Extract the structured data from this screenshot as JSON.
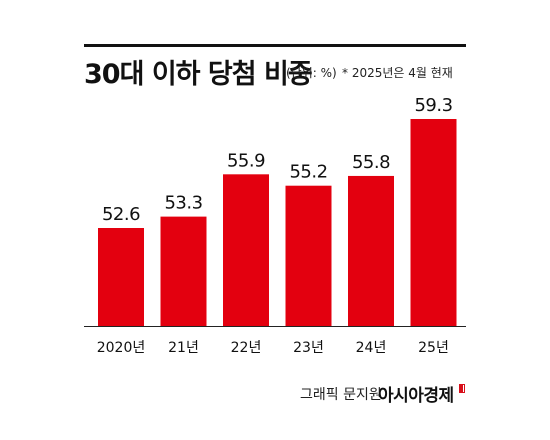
{
  "header": {
    "title": "30대 이하 당첨 비중",
    "unit_note": "(단위: %)",
    "date_note": "* 2025년은 4월 현재"
  },
  "chart_data": {
    "type": "bar",
    "categories": [
      "2020년",
      "21년",
      "22년",
      "23년",
      "24년",
      "25년"
    ],
    "values": [
      52.6,
      53.3,
      55.9,
      55.2,
      55.8,
      59.3
    ],
    "title": "30대 이하 당첨 비중",
    "xlabel": "",
    "ylabel": "",
    "grid": false,
    "legend": "none",
    "bar_color": "#e3000f",
    "baseline_color": "#222222"
  },
  "footer": {
    "credit": "그래픽 문지원",
    "brand": "아시아경제"
  }
}
